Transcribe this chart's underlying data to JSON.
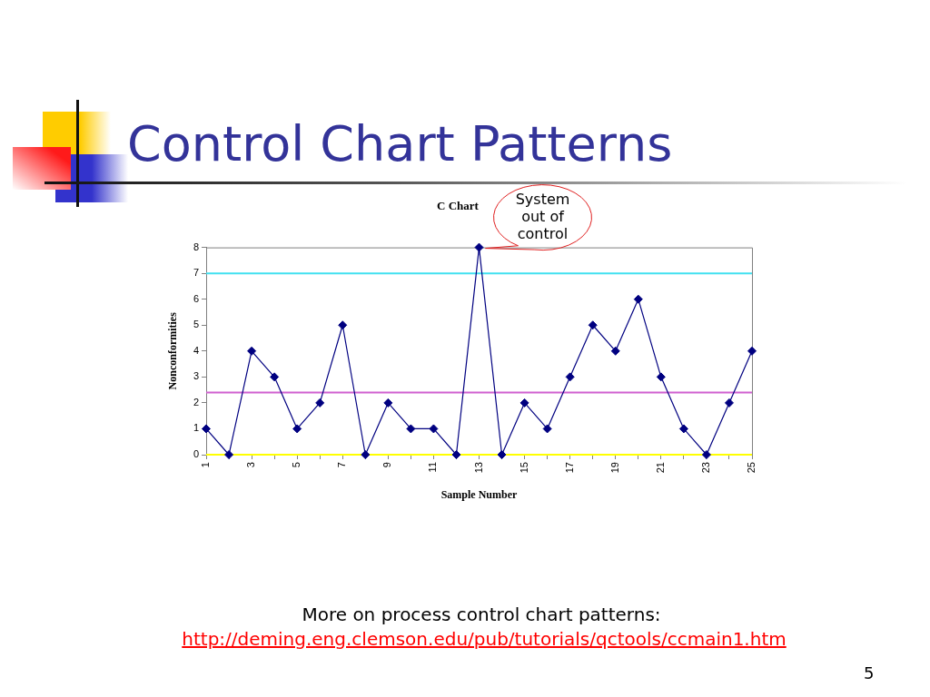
{
  "chart_data": {
    "type": "line",
    "title": "Control Chart Patterns",
    "subtitle": "C Chart",
    "xlabel": "Sample Number",
    "ylabel": "Nonconformities",
    "categories": [
      "1",
      null,
      "3",
      null,
      "5",
      null,
      "7",
      null,
      "9",
      null,
      "11",
      null,
      "13",
      null,
      "15",
      null,
      "17",
      null,
      "19",
      null,
      "21",
      null,
      "23",
      null,
      "25"
    ],
    "values": [
      1,
      0,
      4,
      3,
      1,
      2,
      5,
      0,
      2,
      1,
      1,
      0,
      8,
      0,
      2,
      1,
      3,
      5,
      4,
      6,
      3,
      1,
      0,
      2,
      4
    ],
    "color": "#000080",
    "marker": "diamond",
    "line_style": "solid",
    "grid": false,
    "ylim": [
      0,
      8
    ],
    "yticks": [
      0,
      1,
      2,
      3,
      4,
      5,
      6,
      7,
      8
    ],
    "ref_lines": [
      {
        "axis": "y",
        "value": 7,
        "color": "#40e0f0"
      },
      {
        "axis": "y",
        "value": 2.4,
        "color": "#d060d0"
      },
      {
        "axis": "y",
        "value": 0,
        "color": "#ffff00"
      }
    ],
    "annotations": [
      {
        "text": "System out of control",
        "x": "13",
        "y": 8
      },
      "More on process control chart patterns:",
      "http://deming.eng.clemson.edu/pub/tutorials/qctools/ccmain1.htm",
      "5"
    ]
  }
}
